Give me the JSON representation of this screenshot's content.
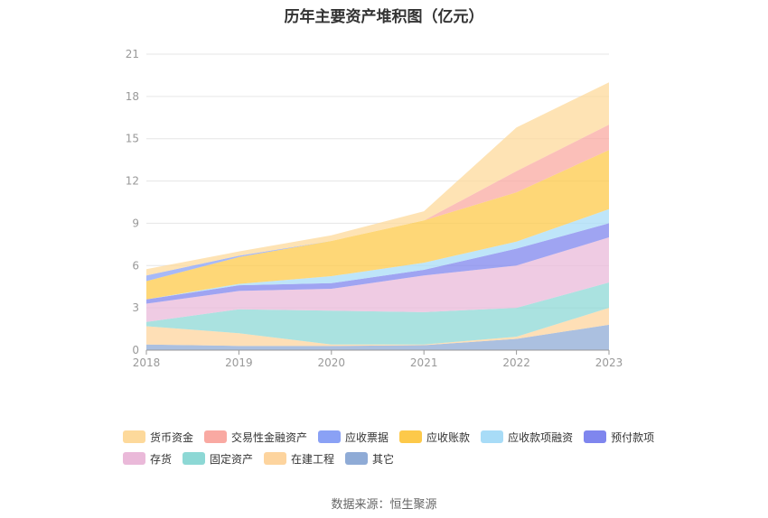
{
  "page": {
    "title": "历年主要资产堆积图（亿元）",
    "source": "数据来源：恒生聚源"
  },
  "chart_data": {
    "type": "area",
    "stacked": true,
    "title": "历年主要资产堆积图（亿元）",
    "xlabel": "",
    "ylabel": "",
    "x": [
      "2018",
      "2019",
      "2020",
      "2021",
      "2022",
      "2023"
    ],
    "ylim": [
      0,
      21
    ],
    "yticks": [
      0,
      3,
      6,
      9,
      12,
      15,
      18,
      21
    ],
    "grid": true,
    "legend_position": "bottom",
    "series": [
      {
        "name": "其它",
        "color": "#8fabd6",
        "values": [
          0.4,
          0.3,
          0.3,
          0.35,
          0.8,
          1.8
        ]
      },
      {
        "name": "在建工程",
        "color": "#fdd49e",
        "values": [
          1.3,
          0.9,
          0.1,
          0.05,
          0.15,
          1.2
        ]
      },
      {
        "name": "固定资产",
        "color": "#8dd8d5",
        "values": [
          0.3,
          1.7,
          2.4,
          2.3,
          2.05,
          1.8
        ]
      },
      {
        "name": "存货",
        "color": "#eab9d9",
        "values": [
          1.3,
          1.3,
          1.55,
          2.6,
          3.0,
          3.2
        ]
      },
      {
        "name": "预付款项",
        "color": "#7f86ee",
        "values": [
          0.3,
          0.4,
          0.4,
          0.4,
          1.2,
          1.0
        ]
      },
      {
        "name": "应收款项融资",
        "color": "#a8dcf7",
        "values": [
          0.0,
          0.1,
          0.5,
          0.5,
          0.5,
          1.0
        ]
      },
      {
        "name": "应收账款",
        "color": "#fdc94a",
        "values": [
          1.3,
          1.9,
          2.5,
          3.0,
          3.5,
          4.2
        ]
      },
      {
        "name": "应收票据",
        "color": "#8aa1f5",
        "values": [
          0.4,
          0.1,
          0.0,
          0.0,
          0.0,
          0.0
        ]
      },
      {
        "name": "交易性金融资产",
        "color": "#f9a9a2",
        "values": [
          0.0,
          0.0,
          0.0,
          0.0,
          1.5,
          1.8
        ]
      },
      {
        "name": "货币资金",
        "color": "#fdd99b",
        "values": [
          0.45,
          0.3,
          0.4,
          0.65,
          3.1,
          3.0
        ]
      }
    ]
  },
  "legend": {
    "row1": [
      {
        "name": "货币资金",
        "color": "#fdd99b"
      },
      {
        "name": "交易性金融资产",
        "color": "#f9a9a2"
      },
      {
        "name": "应收票据",
        "color": "#8aa1f5"
      },
      {
        "name": "应收账款",
        "color": "#fdc94a"
      },
      {
        "name": "应收款项融资",
        "color": "#a8dcf7"
      },
      {
        "name": "预付款项",
        "color": "#7f86ee"
      }
    ],
    "row2": [
      {
        "name": "存货",
        "color": "#eab9d9"
      },
      {
        "name": "固定资产",
        "color": "#8dd8d5"
      },
      {
        "name": "在建工程",
        "color": "#fdd49e"
      },
      {
        "name": "其它",
        "color": "#8fabd6"
      }
    ]
  }
}
